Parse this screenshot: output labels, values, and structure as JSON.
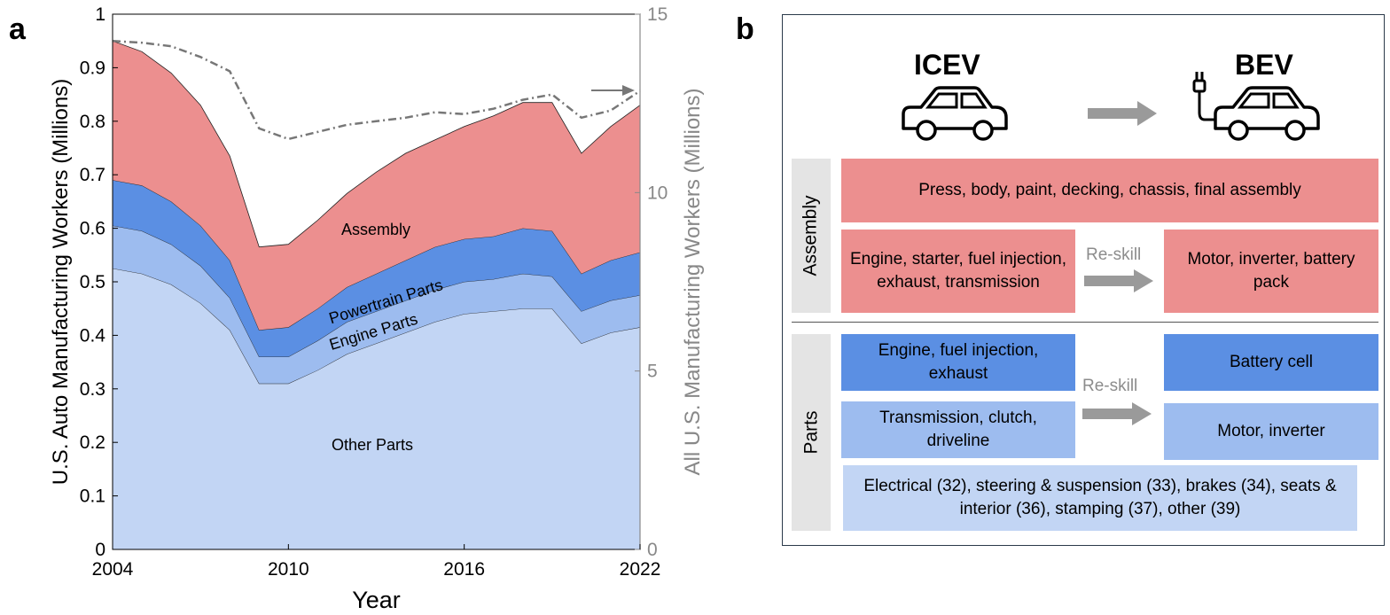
{
  "panel_labels": {
    "a": "a",
    "b": "b"
  },
  "chart_data": {
    "type": "area",
    "stacked": true,
    "x": [
      2004,
      2005,
      2006,
      2007,
      2008,
      2009,
      2010,
      2011,
      2012,
      2013,
      2014,
      2015,
      2016,
      2017,
      2018,
      2019,
      2020,
      2021,
      2022
    ],
    "xlim": [
      2004,
      2022
    ],
    "xticks": [
      "2004",
      "2010",
      "2016",
      "2022"
    ],
    "xtick_values": [
      2004,
      2010,
      2016,
      2022
    ],
    "xlabel": "Year",
    "ylabel": "U.S. Auto Manufacturing Workers (Millions)",
    "ylim": [
      0,
      1
    ],
    "yticks": [
      "0",
      "0.1",
      "0.2",
      "0.3",
      "0.4",
      "0.5",
      "0.6",
      "0.7",
      "0.8",
      "0.9",
      "1"
    ],
    "ytick_values": [
      0,
      0.1,
      0.2,
      0.3,
      0.4,
      0.5,
      0.6,
      0.7,
      0.8,
      0.9,
      1
    ],
    "y2label": "All U.S. Manufacturing Workers (Millions)",
    "y2lim": [
      0,
      15
    ],
    "y2ticks": [
      "0",
      "5",
      "10",
      "15"
    ],
    "y2tick_values": [
      0,
      5,
      10,
      15
    ],
    "series": [
      {
        "name": "Other Parts",
        "color": "#c2d5f4",
        "values": [
          0.525,
          0.515,
          0.495,
          0.46,
          0.41,
          0.31,
          0.31,
          0.335,
          0.365,
          0.385,
          0.405,
          0.425,
          0.44,
          0.445,
          0.45,
          0.45,
          0.385,
          0.405,
          0.415
        ]
      },
      {
        "name": "Engine Parts",
        "color": "#9dbcef",
        "values": [
          0.08,
          0.08,
          0.075,
          0.07,
          0.06,
          0.05,
          0.05,
          0.055,
          0.06,
          0.06,
          0.06,
          0.06,
          0.06,
          0.06,
          0.065,
          0.06,
          0.06,
          0.06,
          0.06
        ]
      },
      {
        "name": "Powertrain Parts",
        "color": "#5b8fe3",
        "values": [
          0.085,
          0.085,
          0.08,
          0.075,
          0.07,
          0.05,
          0.055,
          0.06,
          0.065,
          0.07,
          0.075,
          0.08,
          0.08,
          0.08,
          0.085,
          0.085,
          0.07,
          0.075,
          0.08
        ]
      },
      {
        "name": "Assembly",
        "color": "#ec8f8f",
        "values": [
          0.26,
          0.25,
          0.24,
          0.225,
          0.195,
          0.155,
          0.155,
          0.165,
          0.175,
          0.19,
          0.2,
          0.2,
          0.21,
          0.225,
          0.235,
          0.24,
          0.225,
          0.25,
          0.275
        ]
      }
    ],
    "series_labels": [
      "Assembly",
      "Powertrain Parts",
      "Engine Parts",
      "Other Parts"
    ],
    "secondary_series": {
      "axis": "right",
      "style": "dash-dot",
      "color": "#777777",
      "values": [
        14.25,
        14.2,
        14.1,
        13.8,
        13.4,
        11.8,
        11.5,
        11.7,
        11.9,
        12.0,
        12.1,
        12.25,
        12.2,
        12.35,
        12.6,
        12.75,
        12.1,
        12.3,
        12.85
      ]
    }
  },
  "diagram": {
    "icev_label": "ICEV",
    "bev_label": "BEV",
    "assembly_label": "Assembly",
    "parts_label": "Parts",
    "reskill_label": "Re-skill",
    "assembly_row": "Press, body, paint, decking, chassis, final assembly",
    "assembly_left": "Engine, starter, fuel injection, exhaust, transmission",
    "assembly_right": "Motor, inverter, battery pack",
    "parts_engine": "Engine, fuel injection, exhaust",
    "parts_battery": "Battery cell",
    "parts_transmission": "Transmission, clutch, driveline",
    "parts_motor": "Motor, inverter",
    "parts_other": "Electrical (32), steering & suspension (33), brakes (34), seats & interior (36), stamping (37), other (39)"
  }
}
